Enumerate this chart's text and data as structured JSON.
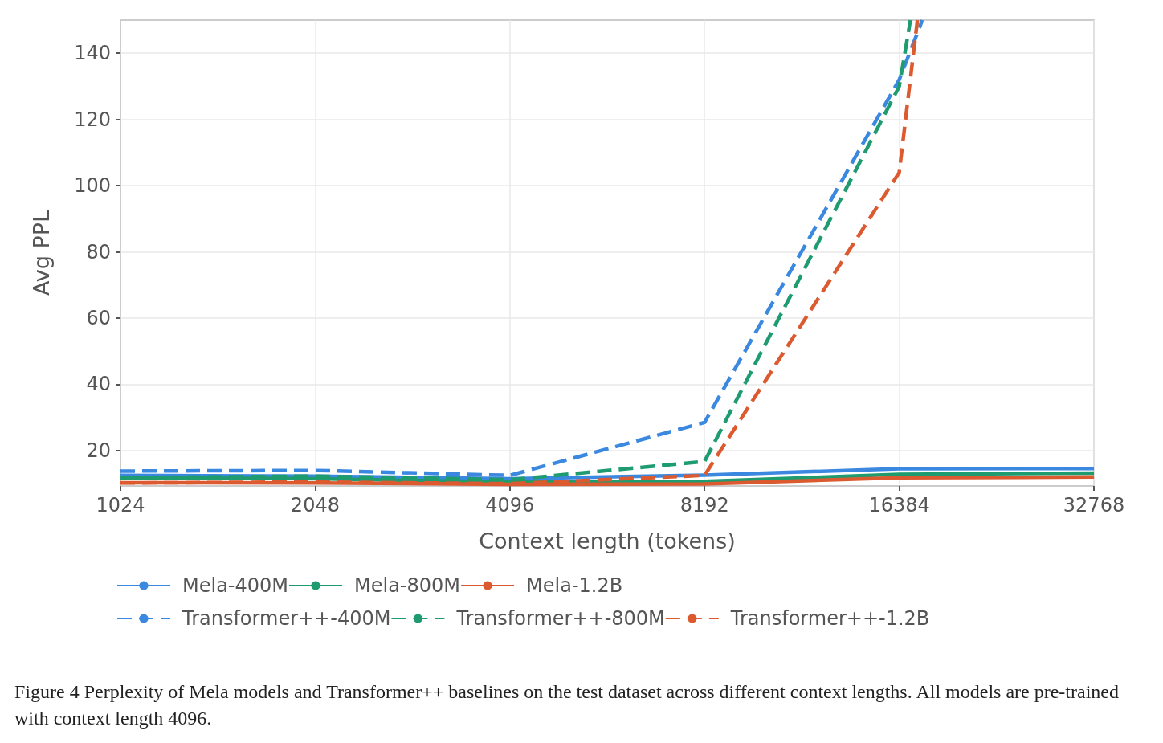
{
  "chart_data": {
    "type": "line",
    "xlabel": "Context length (tokens)",
    "ylabel": "Avg PPL",
    "log": "x",
    "xlim": [
      1024,
      32768
    ],
    "xticks": [
      1024,
      2048,
      4096,
      8192,
      16384,
      32768
    ],
    "ylim": [
      9.3,
      150
    ],
    "yticks": [
      20,
      40,
      60,
      80,
      100,
      120,
      140
    ],
    "grid": true,
    "legend": "bottom",
    "marker": "none",
    "x": [
      1024,
      2048,
      4096,
      8192,
      16384,
      32768
    ],
    "series": [
      {
        "name": "Mela-400M",
        "color": "#3a88e0",
        "line_style": "solid",
        "values": [
          12.5,
          12.3,
          11.5,
          12.6,
          14.5,
          14.6
        ]
      },
      {
        "name": "Mela-800M",
        "color": "#1e9c70",
        "line_style": "solid",
        "values": [
          11.8,
          11.5,
          10.5,
          10.7,
          12.8,
          13.2
        ]
      },
      {
        "name": "Mela-1.2B",
        "color": "#dc5a30",
        "line_style": "solid",
        "values": [
          10.3,
          10.2,
          9.8,
          9.9,
          11.8,
          12.0
        ]
      },
      {
        "name": "Transformer++-400M",
        "color": "#3a88e0",
        "line_style": "dashed",
        "x": [
          1024,
          2048,
          4096,
          8192,
          16384,
          17790
        ],
        "values": [
          13.8,
          14.0,
          12.5,
          28.5,
          132,
          150
        ]
      },
      {
        "name": "Transformer++-800M",
        "color": "#1e9c70",
        "line_style": "dashed",
        "x": [
          1024,
          2048,
          4096,
          8192,
          16384,
          17050
        ],
        "values": [
          11.8,
          12.3,
          11.2,
          16.7,
          130,
          150
        ]
      },
      {
        "name": "Transformer++-1.2B",
        "color": "#dc5a30",
        "line_style": "dashed",
        "x": [
          1024,
          2048,
          4096,
          8192,
          16384,
          17480
        ],
        "values": [
          10.2,
          10.5,
          10.0,
          12.5,
          104,
          150
        ]
      }
    ],
    "annotations": [
      "Figure 4  Perplexity of Mela models and Transformer++ baselines on the test dataset across different context lengths. All models are pre-trained with context length 4096."
    ]
  }
}
